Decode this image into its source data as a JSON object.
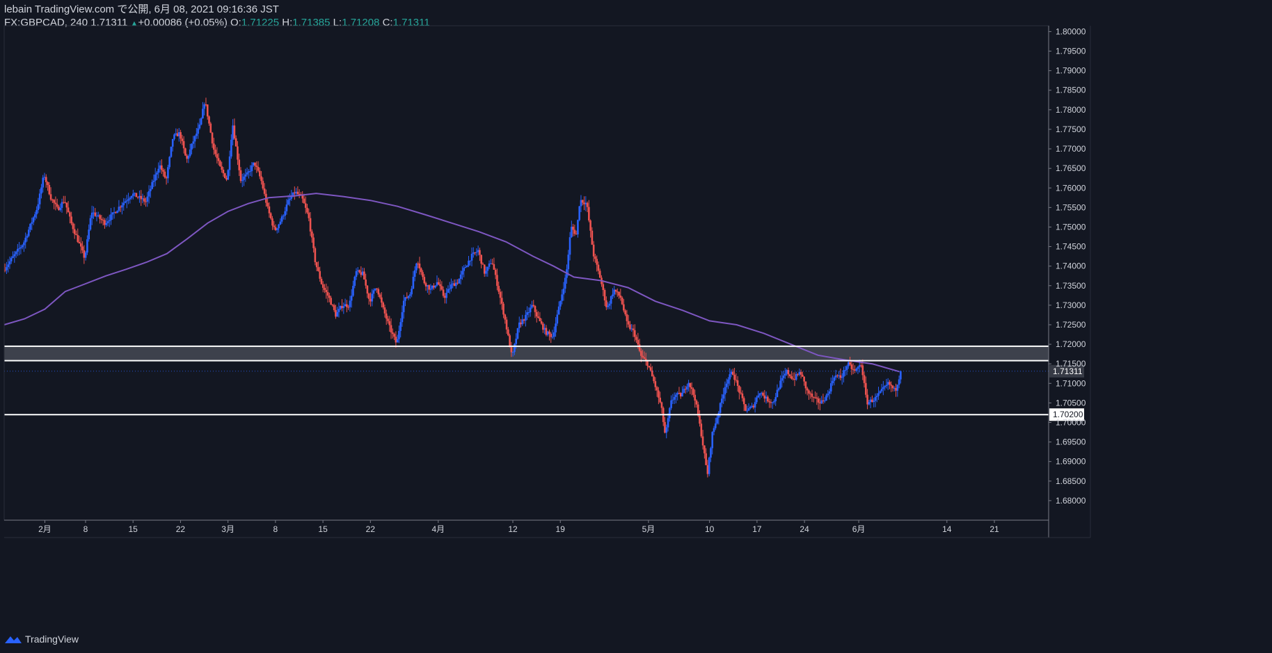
{
  "header": {
    "published_line": "lebain TradingView.com で公開, 6月 08, 2021 09:16:36 JST",
    "symbol": "FX:GBPCAD",
    "interval": "240",
    "last": "1.71311",
    "change": "+0.00086 (+0.05%)",
    "open_label": "O:",
    "open": "1.71225",
    "high_label": "H:",
    "high": "1.71385",
    "low_label": "L:",
    "low": "1.71208",
    "close_label": "C:",
    "close": "1.71311"
  },
  "footer": {
    "brand": "TradingView"
  },
  "colors": {
    "background": "#131722",
    "up": "#2962ff",
    "down": "#ef5350",
    "ma": "#7e57c2",
    "teal": "#26a69a",
    "level_line": "#ffffff",
    "zone_fill": "#434651"
  },
  "chart_data": {
    "type": "candlestick",
    "symbol": "FX:GBPCAD",
    "interval": "240",
    "ylim": [
      1.675,
      1.8015
    ],
    "price_ticks": [
      "1.80000",
      "1.79500",
      "1.79000",
      "1.78500",
      "1.78000",
      "1.77500",
      "1.77000",
      "1.76500",
      "1.76000",
      "1.75500",
      "1.75000",
      "1.74500",
      "1.74000",
      "1.73500",
      "1.73000",
      "1.72500",
      "1.72000",
      "1.71500",
      "1.71000",
      "1.70500",
      "1.70000",
      "1.69500",
      "1.69000",
      "1.68500",
      "1.68000"
    ],
    "time_ticks": [
      {
        "label": "2月",
        "day": 3
      },
      {
        "label": "8",
        "day": 9
      },
      {
        "label": "15",
        "day": 16
      },
      {
        "label": "22",
        "day": 23
      },
      {
        "label": "3月",
        "day": 30
      },
      {
        "label": "8",
        "day": 37
      },
      {
        "label": "15",
        "day": 44
      },
      {
        "label": "22",
        "day": 51
      },
      {
        "label": "4月",
        "day": 61
      },
      {
        "label": "12",
        "day": 72
      },
      {
        "label": "19",
        "day": 79
      },
      {
        "label": "5月",
        "day": 92
      },
      {
        "label": "10",
        "day": 101
      },
      {
        "label": "17",
        "day": 108
      },
      {
        "label": "24",
        "day": 115
      },
      {
        "label": "6月",
        "day": 123
      },
      {
        "label": "14",
        "day": 136
      },
      {
        "label": "21",
        "day": 143
      }
    ],
    "x_range_days": [
      -3,
      151
    ],
    "last_price": "1.71311",
    "last_price_value": 1.71311,
    "level_label": "1.70200",
    "levels": [
      1.7195,
      1.7158,
      1.702
    ],
    "zone": [
      1.7158,
      1.7195
    ],
    "ma_path": [
      {
        "day": -3,
        "price": 1.725
      },
      {
        "day": 0,
        "price": 1.7265
      },
      {
        "day": 3,
        "price": 1.729
      },
      {
        "day": 6,
        "price": 1.7335
      },
      {
        "day": 9,
        "price": 1.7355
      },
      {
        "day": 12,
        "price": 1.7375
      },
      {
        "day": 15,
        "price": 1.7392
      },
      {
        "day": 18,
        "price": 1.741
      },
      {
        "day": 21,
        "price": 1.7432
      },
      {
        "day": 24,
        "price": 1.747
      },
      {
        "day": 27,
        "price": 1.751
      },
      {
        "day": 30,
        "price": 1.754
      },
      {
        "day": 33,
        "price": 1.756
      },
      {
        "day": 36,
        "price": 1.7575
      },
      {
        "day": 40,
        "price": 1.758
      },
      {
        "day": 43,
        "price": 1.7586
      },
      {
        "day": 47,
        "price": 1.7578
      },
      {
        "day": 51,
        "price": 1.7568
      },
      {
        "day": 55,
        "price": 1.7553
      },
      {
        "day": 59,
        "price": 1.7532
      },
      {
        "day": 63,
        "price": 1.751
      },
      {
        "day": 67,
        "price": 1.7488
      },
      {
        "day": 71,
        "price": 1.7462
      },
      {
        "day": 75,
        "price": 1.7425
      },
      {
        "day": 78,
        "price": 1.74
      },
      {
        "day": 81,
        "price": 1.7372
      },
      {
        "day": 85,
        "price": 1.7363
      },
      {
        "day": 89,
        "price": 1.7345
      },
      {
        "day": 93,
        "price": 1.731
      },
      {
        "day": 97,
        "price": 1.7287
      },
      {
        "day": 101,
        "price": 1.726
      },
      {
        "day": 105,
        "price": 1.725
      },
      {
        "day": 109,
        "price": 1.7228
      },
      {
        "day": 113,
        "price": 1.72
      },
      {
        "day": 117,
        "price": 1.7172
      },
      {
        "day": 121,
        "price": 1.716
      },
      {
        "day": 125,
        "price": 1.715
      },
      {
        "day": 129,
        "price": 1.713
      }
    ],
    "price_path": [
      {
        "day": -3,
        "price": 1.739
      },
      {
        "day": 0,
        "price": 1.746
      },
      {
        "day": 2,
        "price": 1.755
      },
      {
        "day": 3,
        "price": 1.7635
      },
      {
        "day": 4,
        "price": 1.7575
      },
      {
        "day": 5,
        "price": 1.7545
      },
      {
        "day": 6,
        "price": 1.757
      },
      {
        "day": 7,
        "price": 1.751
      },
      {
        "day": 9,
        "price": 1.742
      },
      {
        "day": 10,
        "price": 1.754
      },
      {
        "day": 12,
        "price": 1.751
      },
      {
        "day": 14,
        "price": 1.755
      },
      {
        "day": 16,
        "price": 1.7585
      },
      {
        "day": 18,
        "price": 1.7565
      },
      {
        "day": 20,
        "price": 1.766
      },
      {
        "day": 21,
        "price": 1.762
      },
      {
        "day": 22,
        "price": 1.773
      },
      {
        "day": 23,
        "price": 1.774
      },
      {
        "day": 24,
        "price": 1.767
      },
      {
        "day": 25,
        "price": 1.772
      },
      {
        "day": 26,
        "price": 1.776
      },
      {
        "day": 26.7,
        "price": 1.7825
      },
      {
        "day": 28,
        "price": 1.77
      },
      {
        "day": 29,
        "price": 1.765
      },
      {
        "day": 30,
        "price": 1.762
      },
      {
        "day": 30.8,
        "price": 1.7765
      },
      {
        "day": 32,
        "price": 1.762
      },
      {
        "day": 33,
        "price": 1.7635
      },
      {
        "day": 34,
        "price": 1.7665
      },
      {
        "day": 35,
        "price": 1.762
      },
      {
        "day": 36,
        "price": 1.7545
      },
      {
        "day": 37,
        "price": 1.749
      },
      {
        "day": 38,
        "price": 1.752
      },
      {
        "day": 39,
        "price": 1.7565
      },
      {
        "day": 40,
        "price": 1.759
      },
      {
        "day": 41,
        "price": 1.7575
      },
      {
        "day": 42,
        "price": 1.7525
      },
      {
        "day": 43,
        "price": 1.741
      },
      {
        "day": 44,
        "price": 1.735
      },
      {
        "day": 45,
        "price": 1.732
      },
      {
        "day": 46,
        "price": 1.7275
      },
      {
        "day": 47,
        "price": 1.73
      },
      {
        "day": 48,
        "price": 1.73
      },
      {
        "day": 49,
        "price": 1.7385
      },
      {
        "day": 50,
        "price": 1.738
      },
      {
        "day": 51,
        "price": 1.731
      },
      {
        "day": 52,
        "price": 1.735
      },
      {
        "day": 53,
        "price": 1.729
      },
      {
        "day": 54,
        "price": 1.724
      },
      {
        "day": 55,
        "price": 1.72
      },
      {
        "day": 56,
        "price": 1.731
      },
      {
        "day": 57,
        "price": 1.733
      },
      {
        "day": 58,
        "price": 1.742
      },
      {
        "day": 59,
        "price": 1.736
      },
      {
        "day": 60,
        "price": 1.734
      },
      {
        "day": 61,
        "price": 1.736
      },
      {
        "day": 62,
        "price": 1.732
      },
      {
        "day": 63,
        "price": 1.735
      },
      {
        "day": 64,
        "price": 1.736
      },
      {
        "day": 65,
        "price": 1.7395
      },
      {
        "day": 66,
        "price": 1.7425
      },
      {
        "day": 67,
        "price": 1.744
      },
      {
        "day": 68,
        "price": 1.738
      },
      {
        "day": 69,
        "price": 1.7415
      },
      {
        "day": 70,
        "price": 1.734
      },
      {
        "day": 71,
        "price": 1.726
      },
      {
        "day": 72,
        "price": 1.7165
      },
      {
        "day": 73,
        "price": 1.725
      },
      {
        "day": 74,
        "price": 1.727
      },
      {
        "day": 75,
        "price": 1.73
      },
      {
        "day": 76,
        "price": 1.726
      },
      {
        "day": 77,
        "price": 1.723
      },
      {
        "day": 78,
        "price": 1.722
      },
      {
        "day": 79,
        "price": 1.73
      },
      {
        "day": 80,
        "price": 1.738
      },
      {
        "day": 80.7,
        "price": 1.75
      },
      {
        "day": 81.5,
        "price": 1.748
      },
      {
        "day": 82,
        "price": 1.757
      },
      {
        "day": 83,
        "price": 1.756
      },
      {
        "day": 84,
        "price": 1.743
      },
      {
        "day": 85,
        "price": 1.737
      },
      {
        "day": 86,
        "price": 1.729
      },
      {
        "day": 87,
        "price": 1.734
      },
      {
        "day": 88,
        "price": 1.732
      },
      {
        "day": 89,
        "price": 1.725
      },
      {
        "day": 90,
        "price": 1.723
      },
      {
        "day": 91,
        "price": 1.717
      },
      {
        "day": 92,
        "price": 1.715
      },
      {
        "day": 93,
        "price": 1.71
      },
      {
        "day": 94,
        "price": 1.704
      },
      {
        "day": 94.6,
        "price": 1.6965
      },
      {
        "day": 95.4,
        "price": 1.705
      },
      {
        "day": 96,
        "price": 1.707
      },
      {
        "day": 97,
        "price": 1.707
      },
      {
        "day": 98,
        "price": 1.7105
      },
      {
        "day": 99,
        "price": 1.706
      },
      {
        "day": 100,
        "price": 1.696
      },
      {
        "day": 100.8,
        "price": 1.6865
      },
      {
        "day": 101.5,
        "price": 1.697
      },
      {
        "day": 102.5,
        "price": 1.703
      },
      {
        "day": 103.5,
        "price": 1.71
      },
      {
        "day": 104.5,
        "price": 1.713
      },
      {
        "day": 105.5,
        "price": 1.708
      },
      {
        "day": 106.5,
        "price": 1.703
      },
      {
        "day": 107.5,
        "price": 1.704
      },
      {
        "day": 108.5,
        "price": 1.708
      },
      {
        "day": 109.5,
        "price": 1.706
      },
      {
        "day": 110.5,
        "price": 1.705
      },
      {
        "day": 111.5,
        "price": 1.71
      },
      {
        "day": 112.5,
        "price": 1.713
      },
      {
        "day": 113.5,
        "price": 1.711
      },
      {
        "day": 114.5,
        "price": 1.713
      },
      {
        "day": 115.5,
        "price": 1.708
      },
      {
        "day": 116.5,
        "price": 1.706
      },
      {
        "day": 117.5,
        "price": 1.705
      },
      {
        "day": 118.5,
        "price": 1.707
      },
      {
        "day": 119.5,
        "price": 1.712
      },
      {
        "day": 120.5,
        "price": 1.7115
      },
      {
        "day": 121.5,
        "price": 1.715
      },
      {
        "day": 122.5,
        "price": 1.713
      },
      {
        "day": 123.5,
        "price": 1.715
      },
      {
        "day": 124.3,
        "price": 1.705
      },
      {
        "day": 125.5,
        "price": 1.706
      },
      {
        "day": 126.5,
        "price": 1.708
      },
      {
        "day": 127.5,
        "price": 1.71
      },
      {
        "day": 128.5,
        "price": 1.708
      },
      {
        "day": 129.3,
        "price": 1.7131
      }
    ]
  }
}
